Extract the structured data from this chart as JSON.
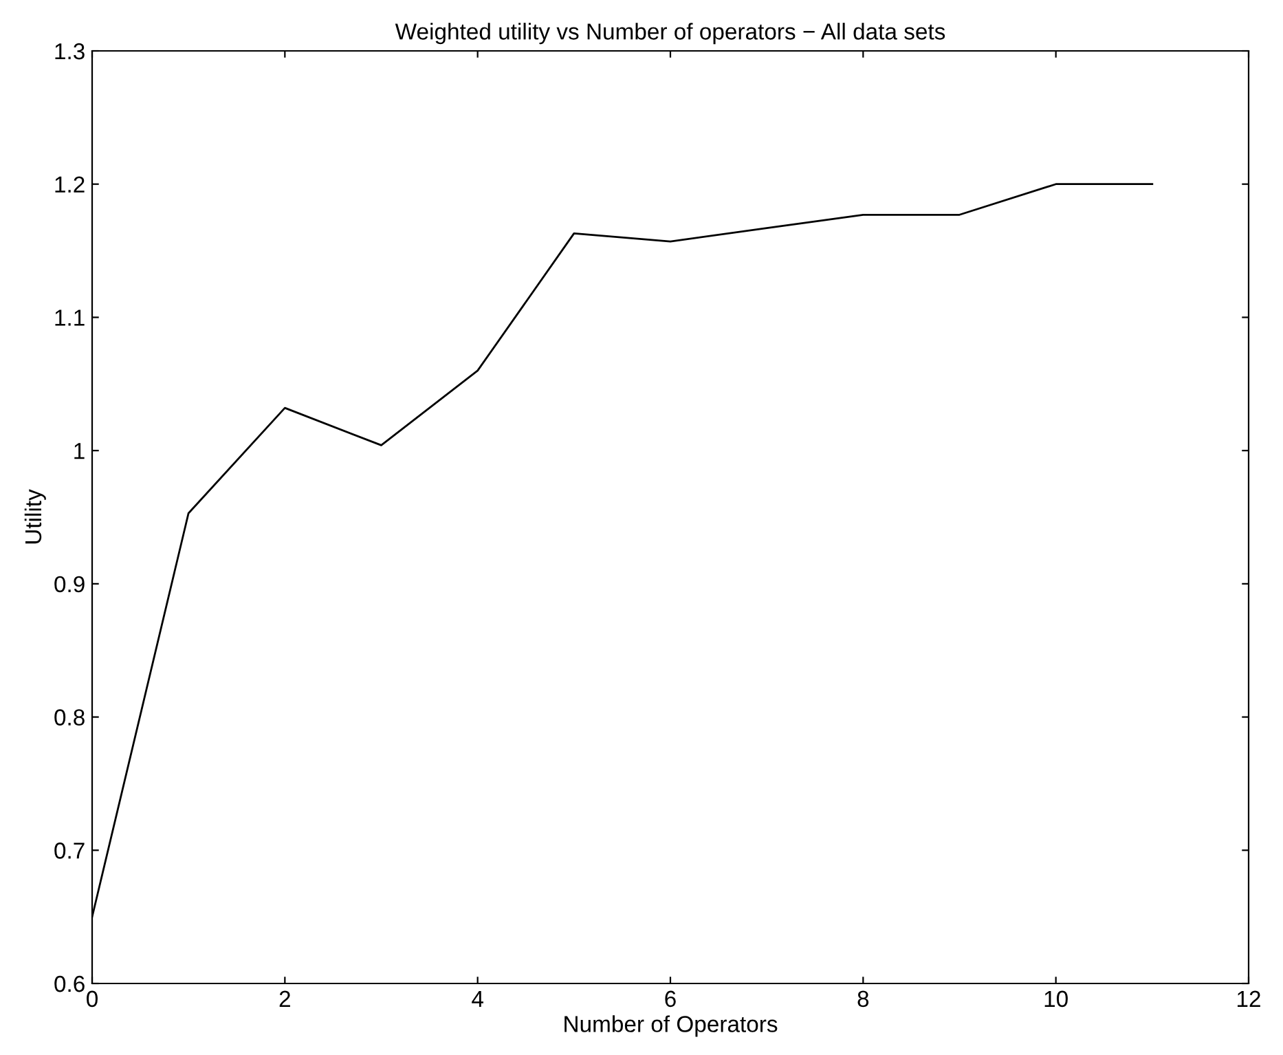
{
  "chart_data": {
    "type": "line",
    "title": "Weighted utility vs Number of operators − All data sets",
    "xlabel": "Number of Operators",
    "ylabel": "Utility",
    "x": [
      0,
      1,
      2,
      3,
      4,
      5,
      6,
      7,
      8,
      9,
      10,
      11
    ],
    "series": [
      {
        "color": "#000000",
        "values": [
          0.65,
          0.953,
          1.032,
          1.004,
          1.06,
          1.163,
          1.157,
          1.167,
          1.177,
          1.177,
          1.2,
          1.2
        ]
      }
    ],
    "xlim": [
      0,
      12
    ],
    "xticks": [
      0,
      2,
      4,
      6,
      8,
      10,
      12
    ],
    "ylim": [
      0.6,
      1.3
    ],
    "yticks": [
      0.6,
      0.7,
      0.8,
      0.9,
      1,
      1.1,
      1.2,
      1.3
    ],
    "grid": false,
    "marker": "none",
    "line_style": "solid"
  }
}
